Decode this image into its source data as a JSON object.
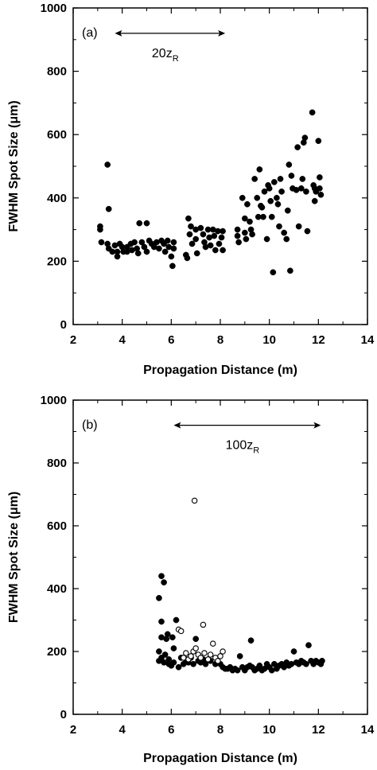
{
  "chart_data": [
    {
      "type": "scatter",
      "panel_label": "(a)",
      "xlabel": "Propagation Distance (m)",
      "ylabel": "FWHM Spot Size (μm)",
      "xlim": [
        2,
        14
      ],
      "ylim": [
        0,
        1000
      ],
      "x_ticks": [
        "2",
        "4",
        "6",
        "8",
        "10",
        "12",
        "14"
      ],
      "y_ticks": [
        "0",
        "200",
        "400",
        "600",
        "800",
        "1000"
      ],
      "grid": false,
      "annotation": {
        "text": "20z",
        "subscript": "R",
        "x_start": 3.7,
        "x_end": 8.2,
        "y": 920
      },
      "series": [
        {
          "marker": "filled-circle",
          "points": [
            [
              3.1,
              300
            ],
            [
              3.1,
              310
            ],
            [
              3.15,
              260
            ],
            [
              3.4,
              505
            ],
            [
              3.45,
              365
            ],
            [
              3.4,
              255
            ],
            [
              3.45,
              240
            ],
            [
              3.6,
              230
            ],
            [
              3.7,
              250
            ],
            [
              3.8,
              230
            ],
            [
              3.8,
              215
            ],
            [
              3.9,
              255
            ],
            [
              4.0,
              245
            ],
            [
              4.05,
              230
            ],
            [
              4.2,
              245
            ],
            [
              4.2,
              230
            ],
            [
              4.35,
              255
            ],
            [
              4.4,
              235
            ],
            [
              4.5,
              260
            ],
            [
              4.6,
              240
            ],
            [
              4.65,
              225
            ],
            [
              4.7,
              320
            ],
            [
              4.8,
              260
            ],
            [
              4.9,
              245
            ],
            [
              5.0,
              230
            ],
            [
              5.0,
              320
            ],
            [
              5.1,
              265
            ],
            [
              5.2,
              255
            ],
            [
              5.3,
              245
            ],
            [
              5.4,
              260
            ],
            [
              5.5,
              240
            ],
            [
              5.6,
              265
            ],
            [
              5.7,
              255
            ],
            [
              5.75,
              230
            ],
            [
              5.85,
              265
            ],
            [
              5.9,
              245
            ],
            [
              6.0,
              215
            ],
            [
              6.05,
              185
            ],
            [
              6.1,
              260
            ],
            [
              6.1,
              240
            ],
            [
              6.6,
              220
            ],
            [
              6.65,
              210
            ],
            [
              6.7,
              335
            ],
            [
              6.75,
              285
            ],
            [
              6.8,
              310
            ],
            [
              6.85,
              255
            ],
            [
              7.0,
              300
            ],
            [
              7.0,
              270
            ],
            [
              7.05,
              225
            ],
            [
              7.2,
              305
            ],
            [
              7.3,
              285
            ],
            [
              7.35,
              260
            ],
            [
              7.4,
              245
            ],
            [
              7.5,
              300
            ],
            [
              7.55,
              275
            ],
            [
              7.6,
              250
            ],
            [
              7.7,
              300
            ],
            [
              7.75,
              280
            ],
            [
              7.8,
              235
            ],
            [
              7.9,
              295
            ],
            [
              7.95,
              255
            ],
            [
              8.05,
              275
            ],
            [
              8.1,
              295
            ],
            [
              8.1,
              235
            ],
            [
              8.7,
              300
            ],
            [
              8.7,
              280
            ],
            [
              8.75,
              260
            ],
            [
              8.9,
              400
            ],
            [
              9.0,
              335
            ],
            [
              9.0,
              290
            ],
            [
              9.05,
              270
            ],
            [
              9.1,
              380
            ],
            [
              9.2,
              325
            ],
            [
              9.25,
              300
            ],
            [
              9.3,
              285
            ],
            [
              9.4,
              460
            ],
            [
              9.5,
              400
            ],
            [
              9.55,
              340
            ],
            [
              9.6,
              490
            ],
            [
              9.65,
              375
            ],
            [
              9.7,
              370
            ],
            [
              9.75,
              340
            ],
            [
              9.8,
              420
            ],
            [
              9.9,
              270
            ],
            [
              9.95,
              440
            ],
            [
              10.0,
              430
            ],
            [
              10.05,
              390
            ],
            [
              10.1,
              340
            ],
            [
              10.15,
              165
            ],
            [
              10.2,
              450
            ],
            [
              10.3,
              400
            ],
            [
              10.35,
              380
            ],
            [
              10.4,
              310
            ],
            [
              10.45,
              460
            ],
            [
              10.5,
              420
            ],
            [
              10.6,
              290
            ],
            [
              10.7,
              270
            ],
            [
              10.75,
              360
            ],
            [
              10.8,
              505
            ],
            [
              10.85,
              170
            ],
            [
              10.9,
              470
            ],
            [
              10.95,
              430
            ],
            [
              11.1,
              425
            ],
            [
              11.15,
              560
            ],
            [
              11.2,
              310
            ],
            [
              11.3,
              430
            ],
            [
              11.35,
              460
            ],
            [
              11.4,
              575
            ],
            [
              11.45,
              590
            ],
            [
              11.5,
              420
            ],
            [
              11.55,
              295
            ],
            [
              11.75,
              670
            ],
            [
              11.8,
              440
            ],
            [
              11.85,
              430
            ],
            [
              11.85,
              390
            ],
            [
              11.9,
              420
            ],
            [
              12.0,
              580
            ],
            [
              12.05,
              465
            ],
            [
              12.05,
              430
            ],
            [
              12.1,
              410
            ]
          ]
        }
      ]
    },
    {
      "type": "scatter",
      "panel_label": "(b)",
      "xlabel": "Propagation Distance (m)",
      "ylabel": "FWHM Spot Size (μm)",
      "xlim": [
        2,
        14
      ],
      "ylim": [
        0,
        1000
      ],
      "x_ticks": [
        "2",
        "4",
        "6",
        "8",
        "10",
        "12",
        "14"
      ],
      "y_ticks": [
        "0",
        "200",
        "400",
        "600",
        "800",
        "1000"
      ],
      "grid": false,
      "annotation": {
        "text": "100z",
        "subscript": "R",
        "x_start": 6.1,
        "x_end": 12.1,
        "y": 920
      },
      "series": [
        {
          "marker": "filled-circle",
          "points": [
            [
              5.5,
              370
            ],
            [
              5.6,
              440
            ],
            [
              5.7,
              420
            ],
            [
              5.6,
              295
            ],
            [
              5.5,
              200
            ],
            [
              5.6,
              245
            ],
            [
              5.6,
              180
            ],
            [
              5.5,
              170
            ],
            [
              5.7,
              165
            ],
            [
              5.75,
              190
            ],
            [
              5.8,
              240
            ],
            [
              5.85,
              255
            ],
            [
              5.9,
              175
            ],
            [
              5.9,
              160
            ],
            [
              6.0,
              155
            ],
            [
              6.05,
              245
            ],
            [
              6.1,
              210
            ],
            [
              6.1,
              165
            ],
            [
              6.2,
              300
            ],
            [
              6.3,
              150
            ],
            [
              6.4,
              180
            ],
            [
              6.5,
              160
            ],
            [
              6.6,
              175
            ],
            [
              6.7,
              165
            ],
            [
              6.8,
              180
            ],
            [
              6.9,
              160
            ],
            [
              7.0,
              240
            ],
            [
              7.1,
              170
            ],
            [
              7.2,
              165
            ],
            [
              7.3,
              175
            ],
            [
              7.4,
              160
            ],
            [
              7.6,
              170
            ],
            [
              7.8,
              160
            ],
            [
              8.0,
              160
            ],
            [
              8.1,
              150
            ],
            [
              8.2,
              145
            ],
            [
              8.3,
              145
            ],
            [
              8.4,
              150
            ],
            [
              8.5,
              140
            ],
            [
              8.6,
              145
            ],
            [
              8.7,
              140
            ],
            [
              8.8,
              185
            ],
            [
              8.9,
              150
            ],
            [
              9.0,
              140
            ],
            [
              9.1,
              150
            ],
            [
              9.2,
              155
            ],
            [
              9.25,
              235
            ],
            [
              9.3,
              150
            ],
            [
              9.4,
              140
            ],
            [
              9.5,
              145
            ],
            [
              9.6,
              155
            ],
            [
              9.7,
              140
            ],
            [
              9.8,
              145
            ],
            [
              9.9,
              160
            ],
            [
              10.0,
              150
            ],
            [
              10.1,
              140
            ],
            [
              10.2,
              160
            ],
            [
              10.3,
              145
            ],
            [
              10.4,
              155
            ],
            [
              10.5,
              160
            ],
            [
              10.6,
              150
            ],
            [
              10.7,
              165
            ],
            [
              10.8,
              155
            ],
            [
              10.9,
              160
            ],
            [
              11.0,
              200
            ],
            [
              11.1,
              165
            ],
            [
              11.2,
              160
            ],
            [
              11.3,
              170
            ],
            [
              11.4,
              165
            ],
            [
              11.5,
              160
            ],
            [
              11.6,
              220
            ],
            [
              11.7,
              170
            ],
            [
              11.8,
              160
            ],
            [
              11.9,
              170
            ],
            [
              12.0,
              165
            ],
            [
              12.1,
              160
            ],
            [
              12.15,
              170
            ]
          ]
        },
        {
          "marker": "open-circle",
          "points": [
            [
              6.3,
              270
            ],
            [
              6.4,
              265
            ],
            [
              6.5,
              180
            ],
            [
              6.6,
              195
            ],
            [
              6.7,
              175
            ],
            [
              6.8,
              185
            ],
            [
              6.9,
              200
            ],
            [
              6.95,
              680
            ],
            [
              7.0,
              210
            ],
            [
              7.1,
              190
            ],
            [
              7.2,
              180
            ],
            [
              7.3,
              285
            ],
            [
              7.35,
              195
            ],
            [
              7.5,
              175
            ],
            [
              7.6,
              190
            ],
            [
              7.7,
              225
            ],
            [
              7.8,
              180
            ],
            [
              7.9,
              170
            ],
            [
              8.0,
              185
            ],
            [
              8.1,
              200
            ]
          ]
        }
      ]
    }
  ]
}
